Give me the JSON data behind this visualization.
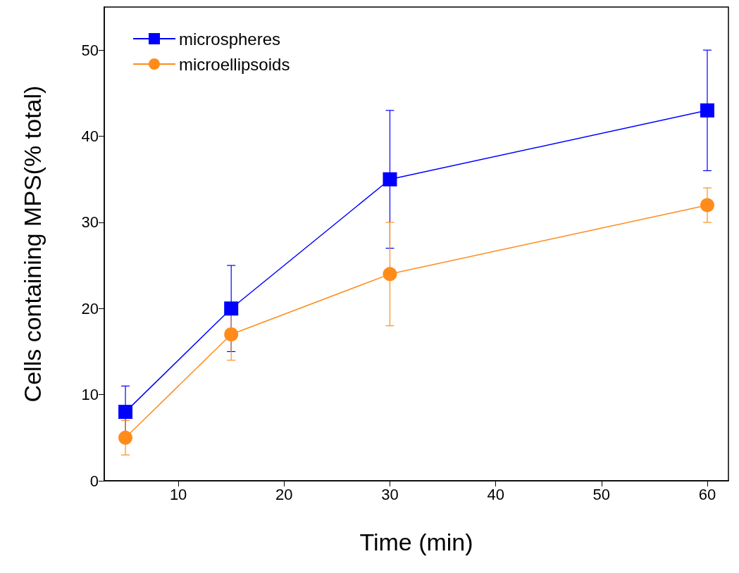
{
  "chart_data": {
    "type": "line",
    "xlabel": "Time (min)",
    "ylabel": "Cells containing MPS(% total)",
    "xlim": [
      3,
      62
    ],
    "xticks": [
      10,
      20,
      30,
      40,
      50,
      60
    ],
    "ylim": [
      0,
      55
    ],
    "yticks": [
      0,
      10,
      20,
      30,
      40,
      50
    ],
    "legend": "top left",
    "grid": false,
    "series": [
      {
        "name": "microspheres",
        "color": "#0000ff",
        "marker": "square",
        "x": [
          5,
          15,
          30,
          60
        ],
        "values": [
          8,
          20,
          35,
          43
        ],
        "errors": [
          3,
          5,
          8,
          7
        ]
      },
      {
        "name": "microellipsoids",
        "color": "#ff8c1a",
        "marker": "circle",
        "x": [
          5,
          15,
          30,
          60
        ],
        "values": [
          5,
          17,
          24,
          32
        ],
        "errors": [
          2,
          3,
          6,
          2
        ]
      }
    ]
  }
}
